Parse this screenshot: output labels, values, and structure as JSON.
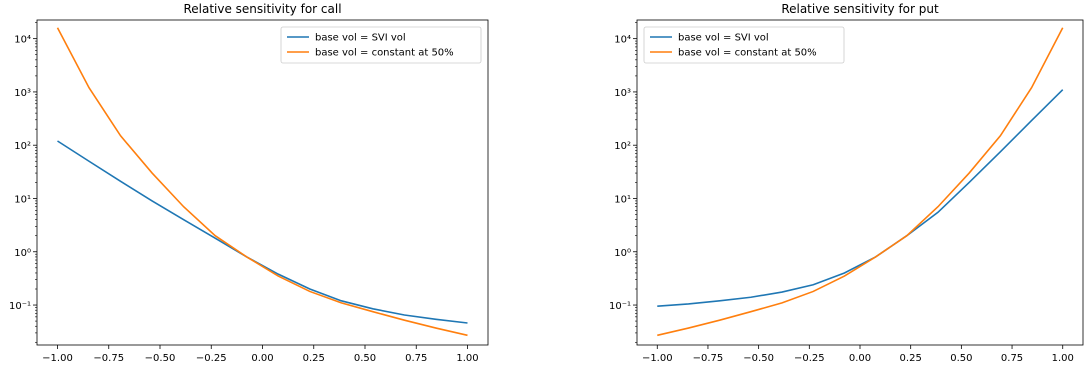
{
  "chart_data": [
    {
      "type": "line",
      "title": "Relative sensitivity for call",
      "xlabel": "",
      "ylabel": "",
      "xlim": [
        -1.1,
        1.1
      ],
      "ylim_log10": [
        -1.75,
        4.35
      ],
      "yscale": "log",
      "grid": false,
      "legend_position": "upper right",
      "xticks": [
        -1.0,
        -0.75,
        -0.5,
        -0.25,
        0.0,
        0.25,
        0.5,
        0.75,
        1.0
      ],
      "xtick_labels": [
        "−1.00",
        "−0.75",
        "−0.50",
        "−0.25",
        "0.00",
        "0.25",
        "0.50",
        "0.75",
        "1.00"
      ],
      "yticks_log10": [
        -1,
        0,
        1,
        2,
        3,
        4
      ],
      "x": [
        -1.0,
        -0.8462,
        -0.6923,
        -0.5385,
        -0.3846,
        -0.2308,
        -0.0769,
        0.0769,
        0.2308,
        0.3846,
        0.5385,
        0.6923,
        0.8462,
        1.0
      ],
      "series": [
        {
          "name": "base vol = SVI vol",
          "color": "#1f77b4",
          "values": [
            120,
            50,
            21,
            9,
            4,
            1.8,
            0.8,
            0.38,
            0.2,
            0.12,
            0.085,
            0.065,
            0.054,
            0.046
          ]
        },
        {
          "name": "base vol = constant at 50%",
          "color": "#ff7f0e",
          "values": [
            16000,
            1200,
            150,
            30,
            7,
            2,
            0.8,
            0.35,
            0.18,
            0.11,
            0.075,
            0.052,
            0.037,
            0.027
          ]
        }
      ]
    },
    {
      "type": "line",
      "title": "Relative sensitivity for put",
      "xlabel": "",
      "ylabel": "",
      "xlim": [
        -1.1,
        1.1
      ],
      "ylim_log10": [
        -1.75,
        4.35
      ],
      "yscale": "log",
      "grid": false,
      "legend_position": "upper left",
      "xticks": [
        -1.0,
        -0.75,
        -0.5,
        -0.25,
        0.0,
        0.25,
        0.5,
        0.75,
        1.0
      ],
      "xtick_labels": [
        "−1.00",
        "−0.75",
        "−0.50",
        "−0.25",
        "0.00",
        "0.25",
        "0.50",
        "0.75",
        "1.00"
      ],
      "yticks_log10": [
        -1,
        0,
        1,
        2,
        3,
        4
      ],
      "x": [
        -1.0,
        -0.8462,
        -0.6923,
        -0.5385,
        -0.3846,
        -0.2308,
        -0.0769,
        0.0769,
        0.2308,
        0.3846,
        0.5385,
        0.6923,
        0.8462,
        1.0
      ],
      "series": [
        {
          "name": "base vol = SVI vol",
          "color": "#1f77b4",
          "values": [
            0.095,
            0.105,
            0.12,
            0.14,
            0.175,
            0.24,
            0.4,
            0.8,
            2,
            5.5,
            20,
            75,
            290,
            1100
          ]
        },
        {
          "name": "base vol = constant at 50%",
          "color": "#ff7f0e",
          "values": [
            0.027,
            0.037,
            0.052,
            0.075,
            0.11,
            0.18,
            0.35,
            0.8,
            2,
            7,
            30,
            150,
            1200,
            16000
          ]
        }
      ]
    }
  ]
}
